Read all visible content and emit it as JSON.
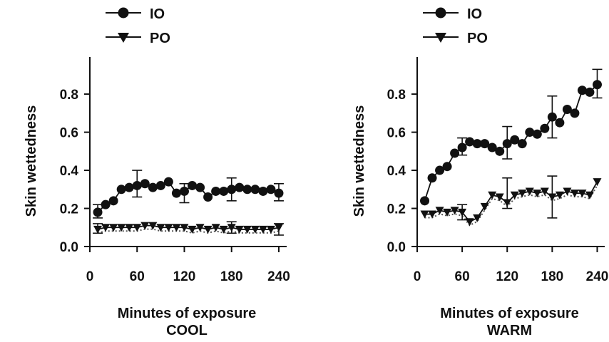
{
  "chart_data": [
    {
      "type": "line",
      "title": "COOL",
      "xlabel": "Minutes of exposure",
      "ylabel": "Skin wettedness",
      "xlim": [
        0,
        250
      ],
      "ylim": [
        0,
        0.95
      ],
      "xticks": [
        0,
        60,
        120,
        180,
        240
      ],
      "yticks": [
        0.0,
        0.2,
        0.4,
        0.6,
        0.8
      ],
      "tick_labels_x": [
        "0",
        "60",
        "120",
        "180",
        "240"
      ],
      "tick_labels_y": [
        "0.0",
        "0.2",
        "0.4",
        "0.6",
        "0.8"
      ],
      "legend_position": "top-left",
      "grid": false,
      "series": [
        {
          "name": "IO",
          "marker": "circle",
          "x": [
            10,
            20,
            30,
            40,
            50,
            60,
            70,
            80,
            90,
            100,
            110,
            120,
            130,
            140,
            150,
            160,
            170,
            180,
            190,
            200,
            210,
            220,
            230,
            240
          ],
          "y": [
            0.18,
            0.22,
            0.24,
            0.3,
            0.31,
            0.32,
            0.33,
            0.31,
            0.32,
            0.34,
            0.28,
            0.29,
            0.32,
            0.31,
            0.26,
            0.29,
            0.29,
            0.3,
            0.31,
            0.3,
            0.3,
            0.29,
            0.3,
            0.28
          ],
          "errorbars": [
            {
              "x": 10,
              "low": 0.15,
              "high": 0.22
            },
            {
              "x": 60,
              "low": 0.26,
              "high": 0.4
            },
            {
              "x": 120,
              "low": 0.23,
              "high": 0.33
            },
            {
              "x": 180,
              "low": 0.24,
              "high": 0.36
            },
            {
              "x": 240,
              "low": 0.24,
              "high": 0.33
            }
          ]
        },
        {
          "name": "PO",
          "marker": "triangle-down",
          "x": [
            10,
            20,
            30,
            40,
            50,
            60,
            70,
            80,
            90,
            100,
            110,
            120,
            130,
            140,
            150,
            160,
            170,
            180,
            190,
            200,
            210,
            220,
            230,
            240
          ],
          "y": [
            0.09,
            0.1,
            0.1,
            0.1,
            0.1,
            0.1,
            0.11,
            0.11,
            0.1,
            0.1,
            0.1,
            0.1,
            0.09,
            0.1,
            0.09,
            0.1,
            0.09,
            0.1,
            0.09,
            0.09,
            0.09,
            0.09,
            0.09,
            0.1
          ],
          "errorbars": [
            {
              "x": 10,
              "low": 0.07,
              "high": 0.12
            },
            {
              "x": 180,
              "low": 0.07,
              "high": 0.13
            },
            {
              "x": 240,
              "low": 0.06,
              "high": 0.12
            }
          ]
        }
      ]
    },
    {
      "type": "line",
      "title": "WARM",
      "xlabel": "Minutes of exposure",
      "ylabel": "Skin wettedness",
      "xlim": [
        0,
        250
      ],
      "ylim": [
        0,
        0.95
      ],
      "xticks": [
        0,
        60,
        120,
        180,
        240
      ],
      "yticks": [
        0.0,
        0.2,
        0.4,
        0.6,
        0.8
      ],
      "tick_labels_x": [
        "0",
        "60",
        "120",
        "180",
        "240"
      ],
      "tick_labels_y": [
        "0.0",
        "0.2",
        "0.4",
        "0.6",
        "0.8"
      ],
      "legend_position": "top-left",
      "grid": false,
      "series": [
        {
          "name": "IO",
          "marker": "circle",
          "x": [
            10,
            20,
            30,
            40,
            50,
            60,
            70,
            80,
            90,
            100,
            110,
            120,
            130,
            140,
            150,
            160,
            170,
            180,
            190,
            200,
            210,
            220,
            230,
            240
          ],
          "y": [
            0.24,
            0.36,
            0.4,
            0.42,
            0.49,
            0.52,
            0.55,
            0.54,
            0.54,
            0.52,
            0.5,
            0.54,
            0.56,
            0.54,
            0.6,
            0.59,
            0.62,
            0.68,
            0.65,
            0.72,
            0.7,
            0.82,
            0.81,
            0.85
          ],
          "errorbars": [
            {
              "x": 60,
              "low": 0.48,
              "high": 0.57
            },
            {
              "x": 120,
              "low": 0.46,
              "high": 0.63
            },
            {
              "x": 180,
              "low": 0.57,
              "high": 0.79
            },
            {
              "x": 240,
              "low": 0.78,
              "high": 0.93
            }
          ]
        },
        {
          "name": "PO",
          "marker": "triangle-down",
          "x": [
            10,
            20,
            30,
            40,
            50,
            60,
            70,
            80,
            90,
            100,
            110,
            120,
            130,
            140,
            150,
            160,
            170,
            180,
            190,
            200,
            210,
            220,
            230,
            240
          ],
          "y": [
            0.17,
            0.17,
            0.19,
            0.18,
            0.19,
            0.18,
            0.13,
            0.15,
            0.21,
            0.27,
            0.26,
            0.23,
            0.27,
            0.28,
            0.29,
            0.28,
            0.29,
            0.26,
            0.27,
            0.29,
            0.28,
            0.28,
            0.27,
            0.34
          ],
          "errorbars": [
            {
              "x": 60,
              "low": 0.14,
              "high": 0.22
            },
            {
              "x": 120,
              "low": 0.2,
              "high": 0.36
            },
            {
              "x": 180,
              "low": 0.15,
              "high": 0.37
            }
          ]
        }
      ]
    }
  ]
}
